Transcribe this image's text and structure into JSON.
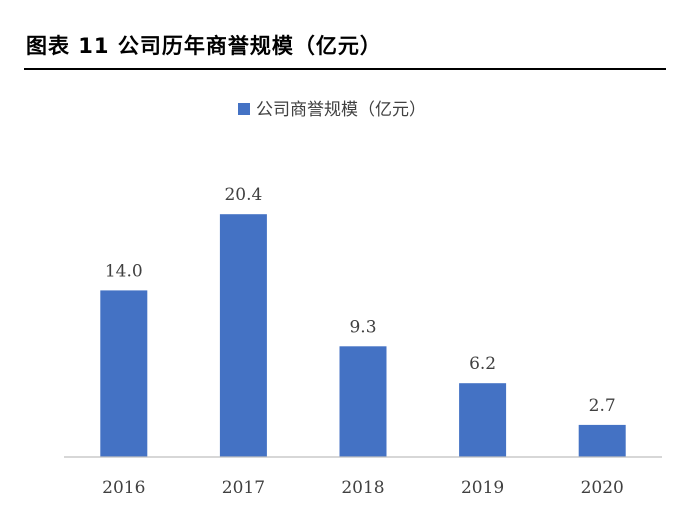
{
  "header": {
    "title": "图表 11 公司历年商誉规模（亿元）"
  },
  "colors": {
    "bar": "#4472C4",
    "axis": "#BFBFBF",
    "text": "#404040"
  },
  "chart_data": {
    "type": "bar",
    "title": "",
    "xlabel": "",
    "ylabel": "",
    "categories": [
      "2016",
      "2017",
      "2018",
      "2019",
      "2020"
    ],
    "series": [
      {
        "name": "公司商誉规模（亿元）",
        "values": [
          14.0,
          20.4,
          9.3,
          6.2,
          2.7
        ],
        "labels": [
          "14.0",
          "20.4",
          "9.3",
          "6.2",
          "2.7"
        ]
      }
    ],
    "ylim": [
      0,
      22
    ],
    "grid": false,
    "legend": "top-center",
    "data_labels": true
  }
}
